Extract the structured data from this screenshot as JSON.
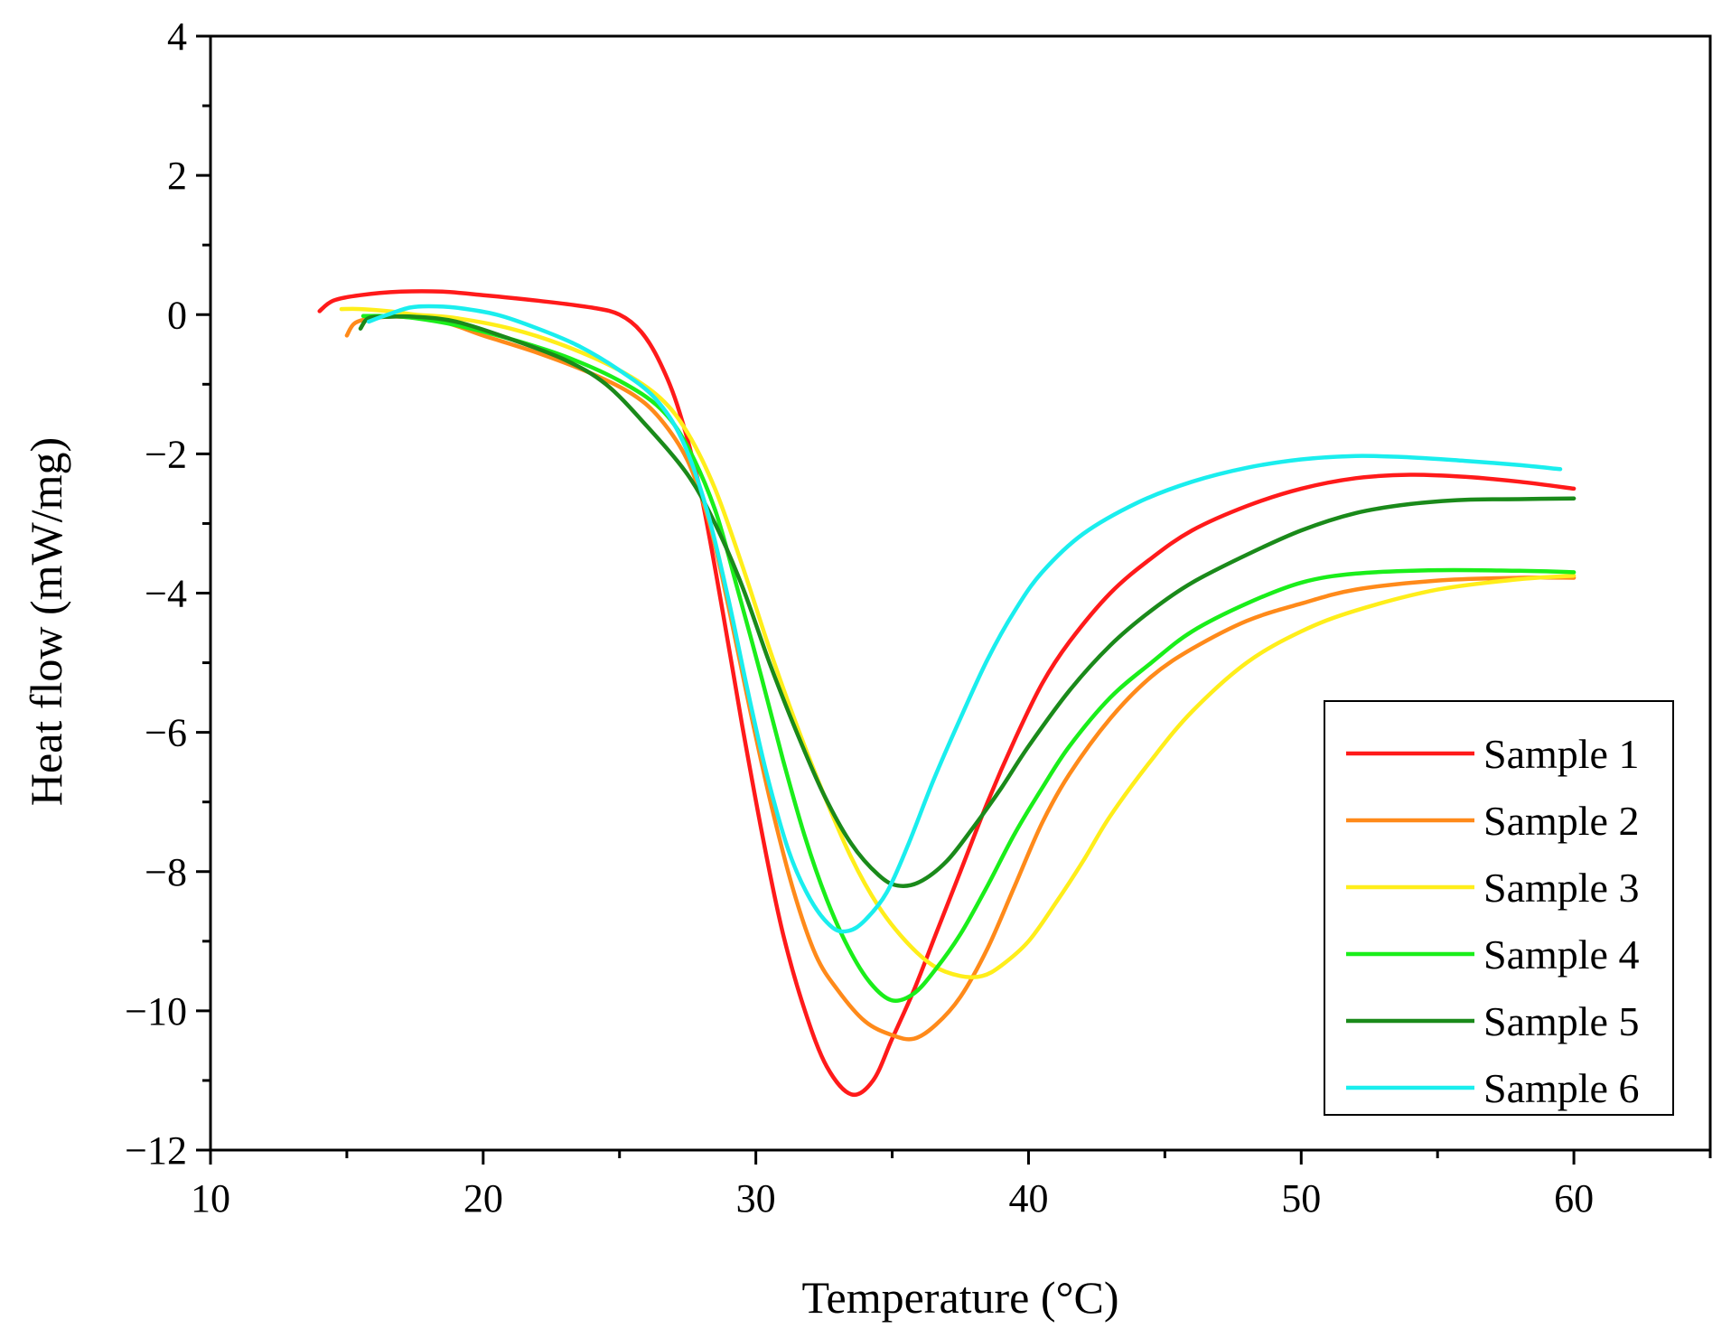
{
  "chart_data": {
    "type": "line",
    "title": "",
    "xlabel": "Temperature (°C)",
    "ylabel": "Heat flow (mW/mg)",
    "xlim": [
      10,
      65
    ],
    "ylim": [
      -12,
      4
    ],
    "xticks": [
      10,
      20,
      30,
      40,
      50,
      60
    ],
    "xtick_labels": [
      "10",
      "20",
      "30",
      "40",
      "50",
      "60"
    ],
    "yticks": [
      4,
      2,
      0,
      -2,
      -4,
      -6,
      -8,
      -10,
      -12
    ],
    "ytick_labels": [
      "4",
      "2",
      "0",
      "−2",
      "−4",
      "−6",
      "−8",
      "−10",
      "−12"
    ],
    "grid": false,
    "legend_position": "bottom-right",
    "series": [
      {
        "name": "Sample 1",
        "color": "#ff1a1a",
        "points": [
          [
            14,
            0.05
          ],
          [
            14.5,
            0.2
          ],
          [
            15.5,
            0.28
          ],
          [
            17,
            0.33
          ],
          [
            18.5,
            0.33
          ],
          [
            20,
            0.28
          ],
          [
            22,
            0.2
          ],
          [
            24,
            0.1
          ],
          [
            25,
            0.0
          ],
          [
            25.8,
            -0.25
          ],
          [
            26.5,
            -0.7
          ],
          [
            27.2,
            -1.4
          ],
          [
            28,
            -2.6
          ],
          [
            28.8,
            -4.3
          ],
          [
            29.5,
            -5.9
          ],
          [
            30.3,
            -7.6
          ],
          [
            31,
            -8.9
          ],
          [
            31.8,
            -10.0
          ],
          [
            32.6,
            -10.8
          ],
          [
            33.5,
            -11.2
          ],
          [
            34.3,
            -11.0
          ],
          [
            35,
            -10.4
          ],
          [
            35.8,
            -9.7
          ],
          [
            36.6,
            -8.9
          ],
          [
            37.5,
            -8.0
          ],
          [
            38.5,
            -7.0
          ],
          [
            39.5,
            -6.1
          ],
          [
            40.5,
            -5.3
          ],
          [
            41.5,
            -4.7
          ],
          [
            43,
            -4.0
          ],
          [
            44.5,
            -3.5
          ],
          [
            46,
            -3.1
          ],
          [
            48,
            -2.75
          ],
          [
            50,
            -2.5
          ],
          [
            52,
            -2.35
          ],
          [
            54,
            -2.3
          ],
          [
            56,
            -2.33
          ],
          [
            58,
            -2.4
          ],
          [
            60,
            -2.5
          ]
        ]
      },
      {
        "name": "Sample 2",
        "color": "#ff8a1a",
        "points": [
          [
            15,
            -0.3
          ],
          [
            15.3,
            -0.12
          ],
          [
            16,
            -0.05
          ],
          [
            17,
            -0.03
          ],
          [
            18.5,
            -0.1
          ],
          [
            20,
            -0.3
          ],
          [
            22,
            -0.55
          ],
          [
            24,
            -0.85
          ],
          [
            25.5,
            -1.15
          ],
          [
            26.5,
            -1.5
          ],
          [
            27.5,
            -2.1
          ],
          [
            28.3,
            -3.0
          ],
          [
            29,
            -4.2
          ],
          [
            29.8,
            -5.7
          ],
          [
            30.6,
            -7.1
          ],
          [
            31.4,
            -8.3
          ],
          [
            32.2,
            -9.2
          ],
          [
            33,
            -9.7
          ],
          [
            34,
            -10.15
          ],
          [
            35,
            -10.35
          ],
          [
            35.8,
            -10.4
          ],
          [
            36.6,
            -10.2
          ],
          [
            37.5,
            -9.8
          ],
          [
            38.5,
            -9.1
          ],
          [
            39.5,
            -8.2
          ],
          [
            40.5,
            -7.3
          ],
          [
            41.5,
            -6.6
          ],
          [
            43,
            -5.8
          ],
          [
            44.5,
            -5.2
          ],
          [
            46,
            -4.8
          ],
          [
            48,
            -4.4
          ],
          [
            50,
            -4.15
          ],
          [
            52,
            -3.95
          ],
          [
            55,
            -3.82
          ],
          [
            58,
            -3.78
          ],
          [
            60,
            -3.78
          ]
        ]
      },
      {
        "name": "Sample 3",
        "color": "#ffee1a",
        "points": [
          [
            14.8,
            0.08
          ],
          [
            15.5,
            0.08
          ],
          [
            16.5,
            0.05
          ],
          [
            17.5,
            0.0
          ],
          [
            19,
            -0.05
          ],
          [
            21,
            -0.2
          ],
          [
            23,
            -0.45
          ],
          [
            25,
            -0.8
          ],
          [
            26.5,
            -1.2
          ],
          [
            27.5,
            -1.7
          ],
          [
            28.5,
            -2.5
          ],
          [
            29.5,
            -3.6
          ],
          [
            30.5,
            -4.8
          ],
          [
            31.5,
            -5.9
          ],
          [
            32.5,
            -6.9
          ],
          [
            33.5,
            -7.8
          ],
          [
            34.5,
            -8.5
          ],
          [
            35.5,
            -9.0
          ],
          [
            36.5,
            -9.35
          ],
          [
            37.5,
            -9.5
          ],
          [
            38.3,
            -9.5
          ],
          [
            39,
            -9.35
          ],
          [
            40,
            -9.0
          ],
          [
            41,
            -8.45
          ],
          [
            42,
            -7.85
          ],
          [
            43,
            -7.2
          ],
          [
            44.5,
            -6.4
          ],
          [
            46,
            -5.7
          ],
          [
            48,
            -5.0
          ],
          [
            50,
            -4.55
          ],
          [
            52,
            -4.25
          ],
          [
            55,
            -3.95
          ],
          [
            58,
            -3.8
          ],
          [
            60,
            -3.75
          ]
        ]
      },
      {
        "name": "Sample 4",
        "color": "#1aee1a",
        "points": [
          [
            15.6,
            -0.02
          ],
          [
            16.5,
            -0.02
          ],
          [
            17.5,
            -0.05
          ],
          [
            19,
            -0.15
          ],
          [
            21,
            -0.35
          ],
          [
            23,
            -0.6
          ],
          [
            25,
            -0.95
          ],
          [
            26.5,
            -1.35
          ],
          [
            27.5,
            -1.9
          ],
          [
            28.5,
            -2.8
          ],
          [
            29.3,
            -3.9
          ],
          [
            30.2,
            -5.2
          ],
          [
            31,
            -6.4
          ],
          [
            31.8,
            -7.5
          ],
          [
            32.6,
            -8.4
          ],
          [
            33.4,
            -9.1
          ],
          [
            34.2,
            -9.6
          ],
          [
            35,
            -9.85
          ],
          [
            35.8,
            -9.75
          ],
          [
            36.6,
            -9.4
          ],
          [
            37.5,
            -8.9
          ],
          [
            38.5,
            -8.2
          ],
          [
            39.5,
            -7.45
          ],
          [
            40.5,
            -6.8
          ],
          [
            41.5,
            -6.2
          ],
          [
            43,
            -5.5
          ],
          [
            44.5,
            -5.0
          ],
          [
            46,
            -4.55
          ],
          [
            48,
            -4.15
          ],
          [
            50,
            -3.85
          ],
          [
            52,
            -3.72
          ],
          [
            55,
            -3.67
          ],
          [
            58,
            -3.68
          ],
          [
            60,
            -3.7
          ]
        ]
      },
      {
        "name": "Sample 5",
        "color": "#1a8a1a",
        "points": [
          [
            15.5,
            -0.2
          ],
          [
            15.8,
            -0.05
          ],
          [
            16.5,
            -0.03
          ],
          [
            17.5,
            -0.03
          ],
          [
            19,
            -0.1
          ],
          [
            21,
            -0.35
          ],
          [
            23,
            -0.65
          ],
          [
            24.5,
            -1.0
          ],
          [
            26,
            -1.6
          ],
          [
            27.5,
            -2.3
          ],
          [
            28.5,
            -3.0
          ],
          [
            29.5,
            -3.9
          ],
          [
            30.5,
            -5.0
          ],
          [
            31.5,
            -6.0
          ],
          [
            32.5,
            -6.9
          ],
          [
            33.5,
            -7.6
          ],
          [
            34.5,
            -8.05
          ],
          [
            35.2,
            -8.2
          ],
          [
            36,
            -8.15
          ],
          [
            37,
            -7.85
          ],
          [
            38,
            -7.35
          ],
          [
            39,
            -6.8
          ],
          [
            40,
            -6.2
          ],
          [
            41.5,
            -5.4
          ],
          [
            43,
            -4.75
          ],
          [
            44.5,
            -4.25
          ],
          [
            46,
            -3.85
          ],
          [
            48,
            -3.45
          ],
          [
            50,
            -3.1
          ],
          [
            52,
            -2.85
          ],
          [
            54,
            -2.72
          ],
          [
            56,
            -2.66
          ],
          [
            58,
            -2.65
          ],
          [
            60,
            -2.64
          ]
        ]
      },
      {
        "name": "Sample 6",
        "color": "#1aeeee",
        "points": [
          [
            15.8,
            -0.1
          ],
          [
            16.5,
            0.0
          ],
          [
            17.3,
            0.1
          ],
          [
            18,
            0.12
          ],
          [
            19,
            0.1
          ],
          [
            20.5,
            0.0
          ],
          [
            22,
            -0.2
          ],
          [
            23.5,
            -0.45
          ],
          [
            25,
            -0.8
          ],
          [
            26.3,
            -1.2
          ],
          [
            27.3,
            -1.8
          ],
          [
            28.2,
            -2.8
          ],
          [
            29,
            -4.1
          ],
          [
            29.7,
            -5.4
          ],
          [
            30.4,
            -6.6
          ],
          [
            31.2,
            -7.7
          ],
          [
            32,
            -8.4
          ],
          [
            32.8,
            -8.8
          ],
          [
            33.4,
            -8.85
          ],
          [
            34,
            -8.7
          ],
          [
            34.8,
            -8.3
          ],
          [
            35.6,
            -7.6
          ],
          [
            36.5,
            -6.7
          ],
          [
            37.5,
            -5.8
          ],
          [
            38.5,
            -4.95
          ],
          [
            39.5,
            -4.25
          ],
          [
            40.5,
            -3.7
          ],
          [
            42,
            -3.15
          ],
          [
            44,
            -2.7
          ],
          [
            46,
            -2.4
          ],
          [
            48,
            -2.2
          ],
          [
            50,
            -2.08
          ],
          [
            52,
            -2.03
          ],
          [
            54,
            -2.05
          ],
          [
            56,
            -2.1
          ],
          [
            58,
            -2.16
          ],
          [
            59.5,
            -2.22
          ]
        ]
      }
    ]
  }
}
